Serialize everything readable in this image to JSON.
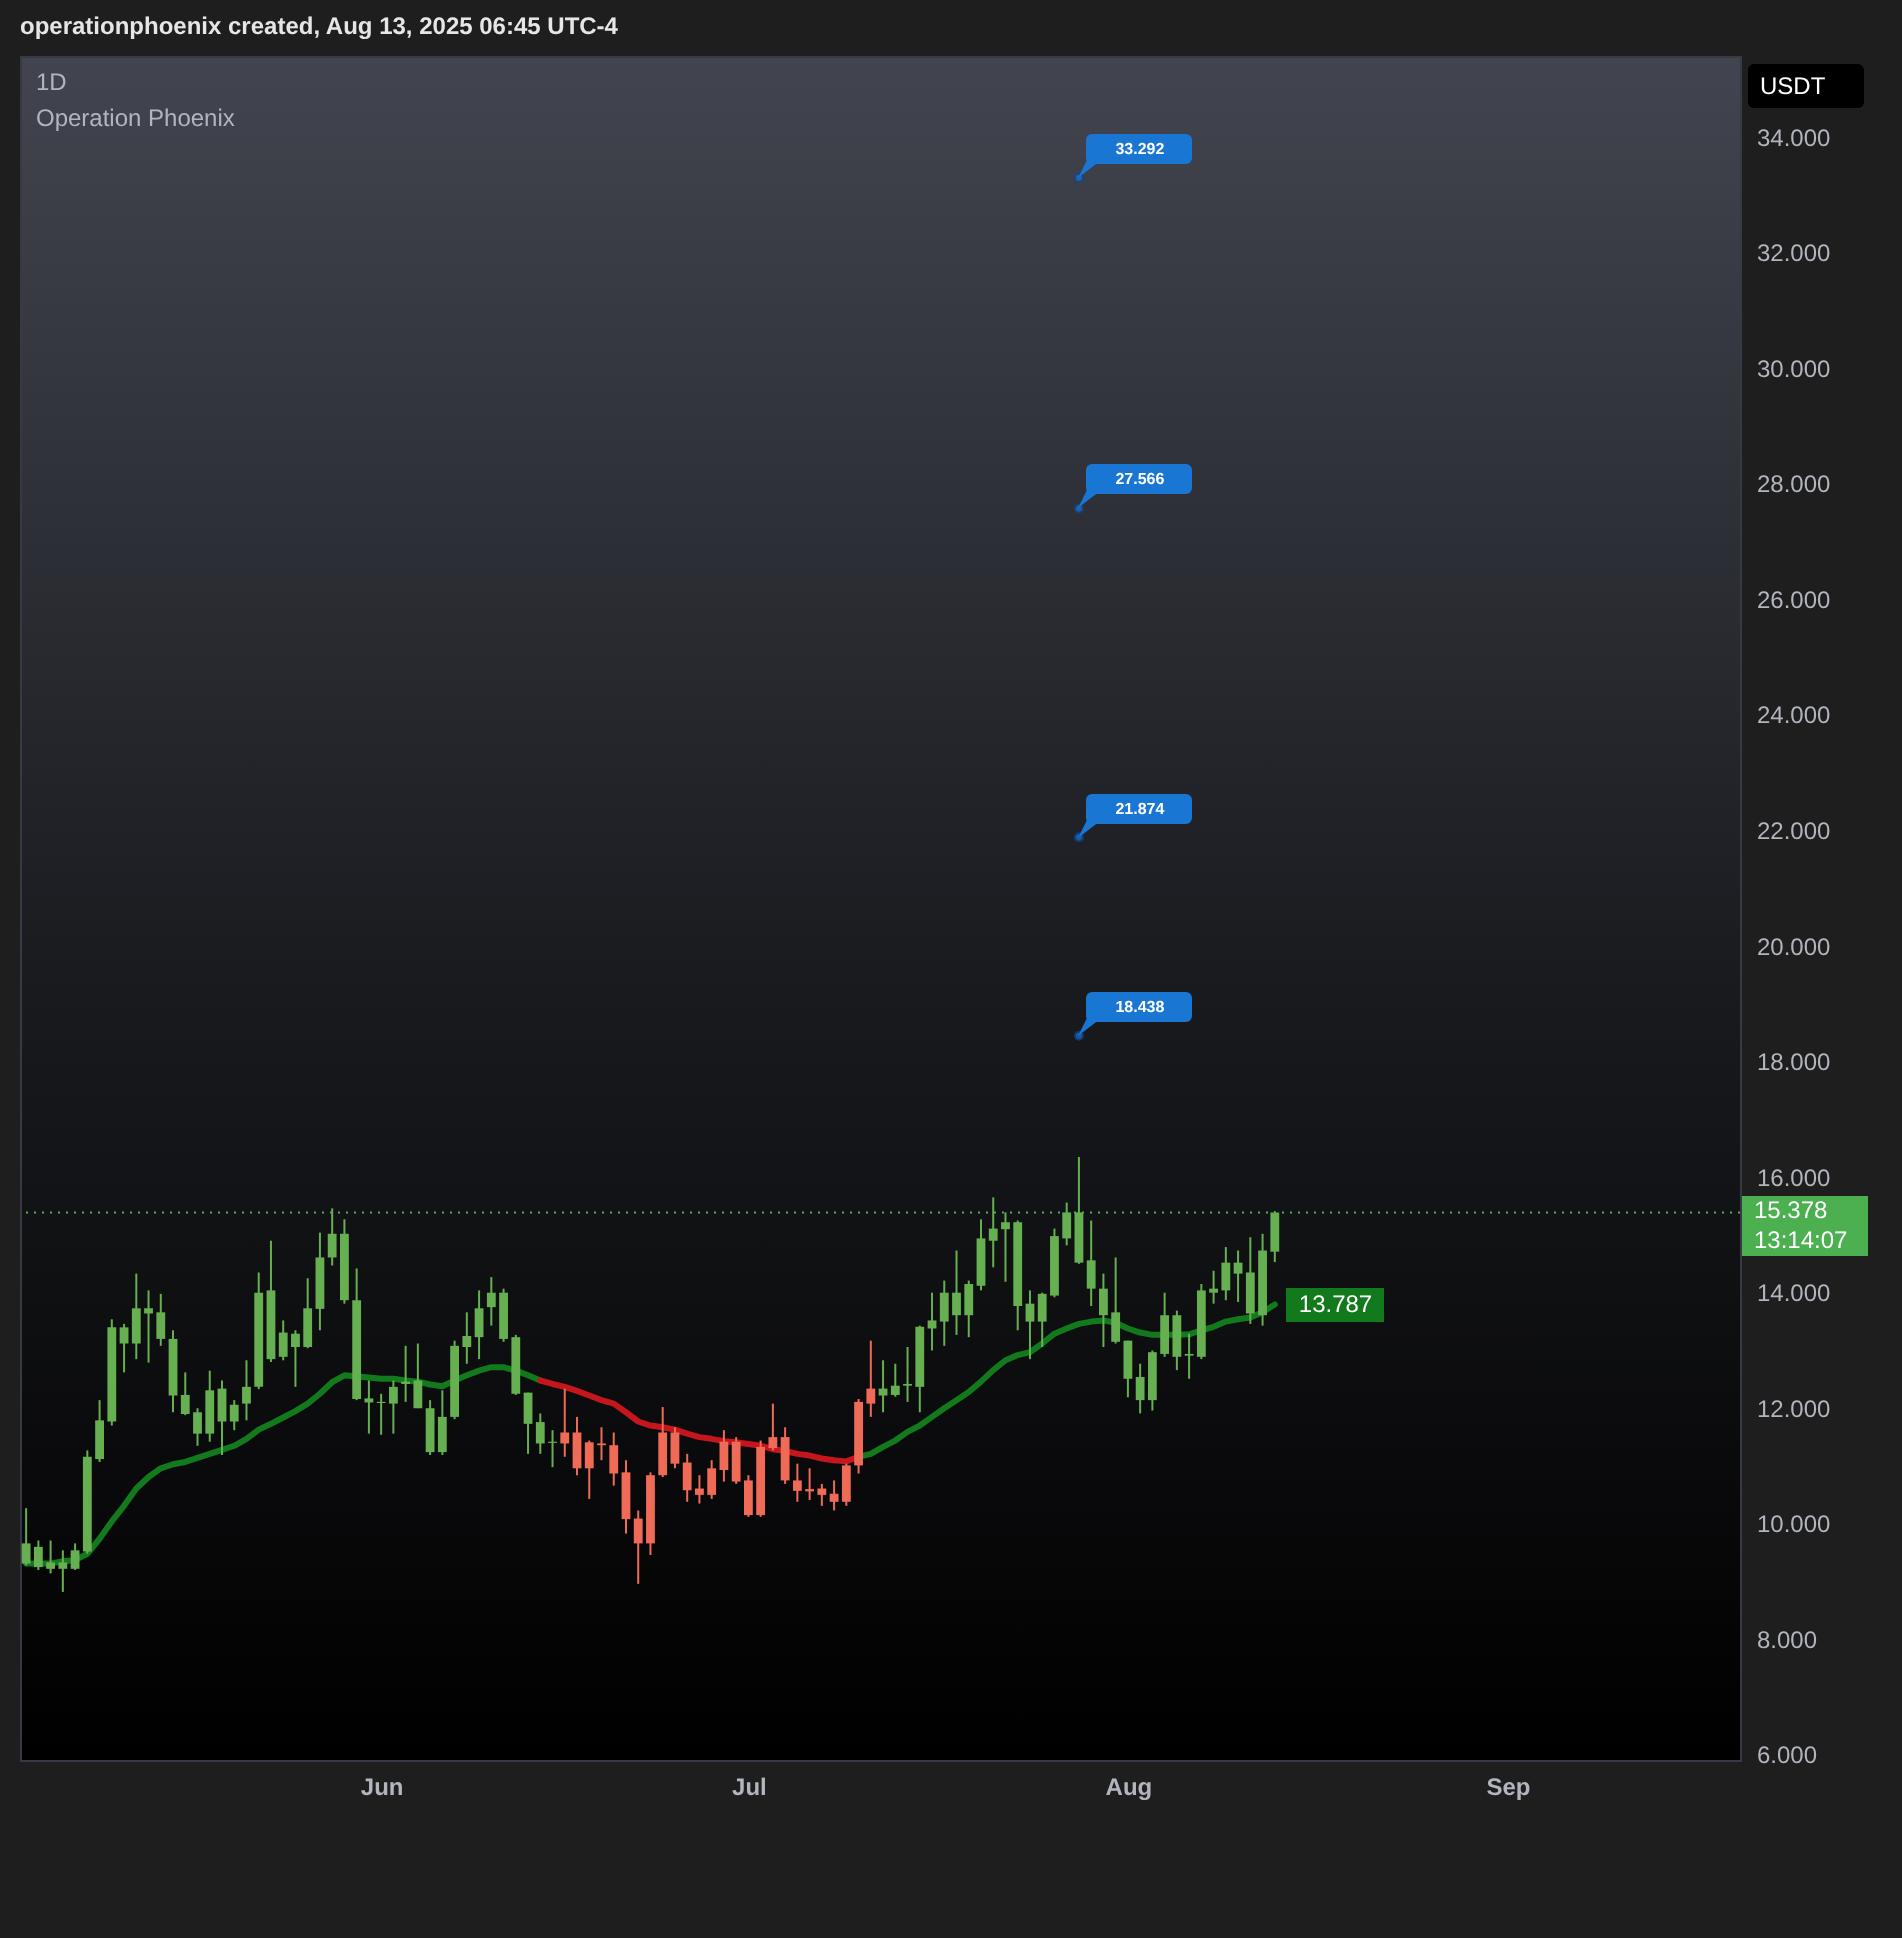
{
  "chart_data": {
    "type": "candlestick",
    "title": "1D",
    "subtitle": "Operation Phoenix",
    "ylabel": "USDT",
    "annotations": [
      "operationphoenix created, Aug 13, 2025 06:45 UTC-4",
      {
        "text": "33.292",
        "x": "2025-07-28",
        "y": 33.292
      },
      {
        "text": "27.566",
        "x": "2025-07-28",
        "y": 27.566
      },
      {
        "text": "21.874",
        "x": "2025-07-28",
        "y": 21.874
      },
      {
        "text": "18.438",
        "x": "2025-07-28",
        "y": 18.438
      },
      {
        "text": "13.787",
        "x": "2025-08-13",
        "y": 13.787
      },
      "13:14:07"
    ],
    "x": [
      "2025-05-03",
      "2025-05-04",
      "2025-05-05",
      "2025-05-06",
      "2025-05-07",
      "2025-05-08",
      "2025-05-09",
      "2025-05-10",
      "2025-05-11",
      "2025-05-12",
      "2025-05-13",
      "2025-05-14",
      "2025-05-15",
      "2025-05-16",
      "2025-05-17",
      "2025-05-18",
      "2025-05-19",
      "2025-05-20",
      "2025-05-21",
      "2025-05-22",
      "2025-05-23",
      "2025-05-24",
      "2025-05-25",
      "2025-05-26",
      "2025-05-27",
      "2025-05-28",
      "2025-05-29",
      "2025-05-30",
      "2025-05-31",
      "2025-06-01",
      "2025-06-02",
      "2025-06-03",
      "2025-06-04",
      "2025-06-05",
      "2025-06-06",
      "2025-06-07",
      "2025-06-08",
      "2025-06-09",
      "2025-06-10",
      "2025-06-11",
      "2025-06-12",
      "2025-06-13",
      "2025-06-14",
      "2025-06-15",
      "2025-06-16",
      "2025-06-17",
      "2025-06-18",
      "2025-06-19",
      "2025-06-20",
      "2025-06-21",
      "2025-06-22",
      "2025-06-23",
      "2025-06-24",
      "2025-06-25",
      "2025-06-26",
      "2025-06-27",
      "2025-06-28",
      "2025-06-29",
      "2025-06-30",
      "2025-07-01",
      "2025-07-02",
      "2025-07-03",
      "2025-07-04",
      "2025-07-05",
      "2025-07-06",
      "2025-07-07",
      "2025-07-08",
      "2025-07-09",
      "2025-07-10",
      "2025-07-11",
      "2025-07-12",
      "2025-07-13",
      "2025-07-14",
      "2025-07-15",
      "2025-07-16",
      "2025-07-17",
      "2025-07-18",
      "2025-07-19",
      "2025-07-20",
      "2025-07-21",
      "2025-07-22",
      "2025-07-23",
      "2025-07-24",
      "2025-07-25",
      "2025-07-26",
      "2025-07-27",
      "2025-07-28",
      "2025-07-29",
      "2025-07-30",
      "2025-07-31",
      "2025-08-01",
      "2025-08-02",
      "2025-08-03",
      "2025-08-04",
      "2025-08-05",
      "2025-08-06",
      "2025-08-07",
      "2025-08-08",
      "2025-08-09",
      "2025-08-10",
      "2025-08-11",
      "2025-08-12",
      "2025-08-13"
    ],
    "ohlc": [
      [
        9.3,
        10.26,
        9.27,
        9.65
      ],
      [
        9.24,
        9.7,
        9.19,
        9.59
      ],
      [
        9.21,
        9.7,
        9.13,
        9.32
      ],
      [
        9.21,
        9.53,
        8.81,
        9.32
      ],
      [
        9.21,
        9.65,
        9.19,
        9.53
      ],
      [
        9.51,
        11.26,
        9.47,
        11.15
      ],
      [
        11.11,
        12.13,
        11.06,
        11.78
      ],
      [
        11.76,
        13.53,
        11.69,
        13.39
      ],
      [
        13.11,
        13.45,
        12.61,
        13.39
      ],
      [
        13.11,
        14.32,
        12.84,
        13.72
      ],
      [
        13.63,
        14.03,
        12.78,
        13.72
      ],
      [
        13.19,
        13.97,
        13.07,
        13.65
      ],
      [
        12.21,
        13.34,
        11.92,
        13.19
      ],
      [
        11.89,
        12.61,
        11.87,
        12.22
      ],
      [
        11.55,
        11.99,
        11.34,
        11.92
      ],
      [
        11.55,
        12.64,
        11.41,
        12.3
      ],
      [
        11.76,
        12.47,
        11.18,
        12.33
      ],
      [
        11.76,
        12.13,
        11.61,
        12.05
      ],
      [
        12.07,
        12.82,
        11.78,
        12.36
      ],
      [
        12.36,
        14.34,
        12.32,
        13.99
      ],
      [
        12.84,
        14.89,
        12.79,
        14.03
      ],
      [
        12.88,
        13.51,
        12.82,
        13.3
      ],
      [
        13.05,
        13.34,
        12.36,
        13.28
      ],
      [
        13.05,
        14.24,
        13.03,
        13.72
      ],
      [
        13.71,
        15.03,
        13.34,
        14.6
      ],
      [
        14.6,
        15.45,
        14.46,
        15.01
      ],
      [
        13.86,
        15.26,
        13.8,
        15.01
      ],
      [
        12.15,
        14.41,
        12.13,
        13.86
      ],
      [
        12.09,
        12.47,
        11.55,
        12.16
      ],
      [
        12.08,
        12.24,
        11.53,
        12.1
      ],
      [
        12.07,
        12.47,
        11.55,
        12.36
      ],
      [
        12.41,
        13.07,
        12.1,
        12.45
      ],
      [
        11.99,
        13.11,
        11.99,
        12.47
      ],
      [
        11.23,
        12.13,
        11.18,
        11.99
      ],
      [
        11.23,
        12.3,
        11.18,
        11.84
      ],
      [
        11.84,
        13.16,
        11.8,
        13.07
      ],
      [
        13.05,
        13.65,
        12.76,
        13.24
      ],
      [
        13.22,
        14.03,
        12.84,
        13.72
      ],
      [
        13.74,
        14.26,
        13.42,
        13.99
      ],
      [
        13.19,
        14.06,
        13.14,
        13.99
      ],
      [
        12.24,
        13.26,
        12.22,
        13.22
      ],
      [
        11.72,
        12.26,
        11.2,
        12.26
      ],
      [
        11.38,
        11.9,
        11.2,
        11.75
      ],
      [
        11.39,
        11.61,
        10.97,
        11.41
      ],
      [
        11.57,
        12.33,
        11.15,
        11.38
      ],
      [
        11.57,
        11.84,
        10.83,
        10.95
      ],
      [
        11.4,
        11.43,
        10.42,
        10.95
      ],
      [
        11.38,
        11.66,
        11.09,
        11.35
      ],
      [
        11.35,
        11.57,
        10.65,
        10.86
      ],
      [
        10.88,
        11.09,
        9.82,
        10.07
      ],
      [
        10.08,
        10.22,
        8.95,
        9.65
      ],
      [
        10.83,
        10.88,
        9.45,
        9.65
      ],
      [
        11.57,
        12.01,
        10.8,
        10.83
      ],
      [
        11.57,
        11.66,
        10.95,
        11.03
      ],
      [
        11.05,
        11.2,
        10.37,
        10.57
      ],
      [
        10.6,
        10.83,
        10.34,
        10.49
      ],
      [
        10.95,
        11.09,
        10.42,
        10.49
      ],
      [
        11.41,
        11.61,
        10.72,
        10.92
      ],
      [
        11.41,
        11.49,
        10.68,
        10.72
      ],
      [
        10.74,
        10.83,
        10.11,
        10.14
      ],
      [
        11.32,
        11.43,
        10.11,
        10.14
      ],
      [
        11.49,
        12.07,
        11.26,
        11.3
      ],
      [
        11.49,
        11.66,
        10.68,
        10.74
      ],
      [
        10.74,
        11.03,
        10.37,
        10.56
      ],
      [
        10.59,
        10.95,
        10.4,
        10.55
      ],
      [
        10.6,
        10.68,
        10.3,
        10.49
      ],
      [
        10.51,
        10.74,
        10.22,
        10.37
      ],
      [
        11.0,
        11.03,
        10.3,
        10.37
      ],
      [
        12.1,
        12.15,
        10.86,
        11.0
      ],
      [
        12.33,
        13.16,
        11.84,
        12.07
      ],
      [
        12.21,
        12.82,
        11.92,
        12.33
      ],
      [
        12.22,
        12.76,
        12.19,
        12.38
      ],
      [
        12.38,
        13.05,
        12.1,
        12.41
      ],
      [
        12.36,
        13.42,
        11.92,
        13.4
      ],
      [
        13.37,
        13.99,
        12.99,
        13.51
      ],
      [
        13.49,
        14.2,
        13.07,
        13.99
      ],
      [
        13.6,
        14.72,
        13.26,
        13.99
      ],
      [
        13.6,
        14.2,
        13.22,
        14.14
      ],
      [
        14.11,
        15.26,
        14.03,
        14.93
      ],
      [
        14.89,
        15.64,
        14.43,
        15.1
      ],
      [
        15.09,
        15.38,
        14.18,
        15.21
      ],
      [
        13.76,
        15.24,
        13.34,
        15.21
      ],
      [
        13.49,
        14.03,
        12.84,
        13.8
      ],
      [
        13.49,
        13.99,
        13.05,
        13.97
      ],
      [
        13.94,
        15.1,
        13.91,
        14.97
      ],
      [
        14.93,
        15.55,
        14.81,
        15.38
      ],
      [
        14.51,
        16.34,
        14.49,
        15.38
      ],
      [
        14.06,
        15.24,
        13.76,
        14.55
      ],
      [
        13.6,
        14.32,
        13.05,
        14.06
      ],
      [
        13.14,
        14.6,
        13.11,
        13.65
      ],
      [
        12.5,
        13.16,
        12.18,
        13.16
      ],
      [
        12.13,
        12.76,
        11.9,
        12.53
      ],
      [
        12.13,
        12.99,
        11.95,
        12.96
      ],
      [
        12.93,
        13.99,
        12.88,
        13.6
      ],
      [
        12.88,
        13.68,
        12.65,
        13.6
      ],
      [
        12.9,
        13.28,
        12.5,
        12.93
      ],
      [
        12.88,
        14.14,
        12.84,
        14.03
      ],
      [
        13.99,
        14.37,
        13.8,
        14.06
      ],
      [
        14.03,
        14.78,
        13.86,
        14.51
      ],
      [
        14.32,
        14.72,
        13.83,
        14.51
      ],
      [
        13.63,
        14.95,
        13.45,
        14.34
      ],
      [
        13.6,
        15.01,
        13.42,
        14.72
      ],
      [
        14.7,
        15.4,
        14.52,
        15.378
      ]
    ],
    "colors": [
      "#66b052",
      "#66b052",
      "#66b052",
      "#66b052",
      "#66b052",
      "#66b052",
      "#66b052",
      "#66b052",
      "#66b052",
      "#66b052",
      "#66b052",
      "#66b052",
      "#66b052",
      "#66b052",
      "#66b052",
      "#66b052",
      "#66b052",
      "#66b052",
      "#66b052",
      "#66b052",
      "#66b052",
      "#66b052",
      "#66b052",
      "#66b052",
      "#66b052",
      "#66b052",
      "#66b052",
      "#66b052",
      "#66b052",
      "#66b052",
      "#66b052",
      "#66b052",
      "#66b052",
      "#66b052",
      "#66b052",
      "#66b052",
      "#66b052",
      "#66b052",
      "#66b052",
      "#66b052",
      "#66b052",
      "#66b052",
      "#66b052",
      "#66b052",
      "#ef6b57",
      "#ef6b57",
      "#ef6b57",
      "#ef6b57",
      "#ef6b57",
      "#ef6b57",
      "#ef6b57",
      "#ef6b57",
      "#ef6b57",
      "#ef6b57",
      "#ef6b57",
      "#ef6b57",
      "#ef6b57",
      "#ef6b57",
      "#ef6b57",
      "#ef6b57",
      "#ef6b57",
      "#ef6b57",
      "#ef6b57",
      "#ef6b57",
      "#ef6b57",
      "#ef6b57",
      "#ef6b57",
      "#ef6b57",
      "#ef6b57",
      "#ef6b57",
      "#66b052",
      "#66b052",
      "#66b052",
      "#66b052",
      "#66b052",
      "#66b052",
      "#66b052",
      "#66b052",
      "#66b052",
      "#66b052",
      "#66b052",
      "#66b052",
      "#66b052",
      "#66b052",
      "#66b052",
      "#66b052",
      "#66b052",
      "#66b052",
      "#66b052",
      "#66b052",
      "#66b052",
      "#66b052",
      "#66b052",
      "#66b052",
      "#66b052",
      "#66b052",
      "#66b052",
      "#66b052",
      "#66b052",
      "#66b052",
      "#66b052",
      "#66b052",
      "#66b052"
    ],
    "series": [
      {
        "type": "line",
        "color": "#127a1c",
        "x": [
          "2025-05-03",
          "2025-05-04",
          "2025-05-05",
          "2025-05-06",
          "2025-05-07",
          "2025-05-08",
          "2025-05-09",
          "2025-05-10",
          "2025-05-11",
          "2025-05-12",
          "2025-05-13",
          "2025-05-14",
          "2025-05-15",
          "2025-05-16",
          "2025-05-17",
          "2025-05-18",
          "2025-05-19",
          "2025-05-20",
          "2025-05-21",
          "2025-05-22",
          "2025-05-23",
          "2025-05-24",
          "2025-05-25",
          "2025-05-26",
          "2025-05-27",
          "2025-05-28",
          "2025-05-29",
          "2025-05-30",
          "2025-05-31",
          "2025-06-01",
          "2025-06-02",
          "2025-06-03",
          "2025-06-04",
          "2025-06-05",
          "2025-06-06",
          "2025-06-07",
          "2025-06-08",
          "2025-06-09",
          "2025-06-10",
          "2025-06-11",
          "2025-06-12",
          "2025-06-13",
          "2025-06-14"
        ],
        "values": [
          9.3,
          9.3,
          9.3,
          9.34,
          9.36,
          9.47,
          9.73,
          10.03,
          10.3,
          10.6,
          10.8,
          10.95,
          11.02,
          11.06,
          11.13,
          11.2,
          11.27,
          11.34,
          11.46,
          11.62,
          11.72,
          11.83,
          11.94,
          12.07,
          12.24,
          12.44,
          12.56,
          12.54,
          12.52,
          12.5,
          12.5,
          12.47,
          12.45,
          12.4,
          12.37,
          12.47,
          12.56,
          12.64,
          12.7,
          12.7,
          12.64,
          12.56,
          12.47
        ]
      },
      {
        "type": "line",
        "color": "#c4161c",
        "x": [
          "2025-06-14",
          "2025-06-15",
          "2025-06-16",
          "2025-06-17",
          "2025-06-18",
          "2025-06-19",
          "2025-06-20",
          "2025-06-21",
          "2025-06-22",
          "2025-06-23",
          "2025-06-24",
          "2025-06-25",
          "2025-06-26",
          "2025-06-27",
          "2025-06-28",
          "2025-06-29",
          "2025-06-30",
          "2025-07-01",
          "2025-07-02",
          "2025-07-03",
          "2025-07-04",
          "2025-07-05",
          "2025-07-06",
          "2025-07-07",
          "2025-07-08",
          "2025-07-09",
          "2025-07-10"
        ],
        "values": [
          12.47,
          12.41,
          12.36,
          12.29,
          12.21,
          12.13,
          12.07,
          11.92,
          11.76,
          11.69,
          11.66,
          11.62,
          11.55,
          11.49,
          11.46,
          11.42,
          11.4,
          11.37,
          11.34,
          11.28,
          11.25,
          11.2,
          11.17,
          11.12,
          11.09,
          11.07,
          11.15
        ]
      },
      {
        "type": "line",
        "color": "#127a1c",
        "x": [
          "2025-07-10",
          "2025-07-11",
          "2025-07-12",
          "2025-07-13",
          "2025-07-14",
          "2025-07-15",
          "2025-07-16",
          "2025-07-17",
          "2025-07-18",
          "2025-07-19",
          "2025-07-20",
          "2025-07-21",
          "2025-07-22",
          "2025-07-23",
          "2025-07-24",
          "2025-07-25",
          "2025-07-26",
          "2025-07-27",
          "2025-07-28",
          "2025-07-29",
          "2025-07-30",
          "2025-07-31",
          "2025-08-01",
          "2025-08-02",
          "2025-08-03",
          "2025-08-04",
          "2025-08-05",
          "2025-08-06",
          "2025-08-07",
          "2025-08-08",
          "2025-08-09",
          "2025-08-10",
          "2025-08-11",
          "2025-08-12",
          "2025-08-13"
        ],
        "values": [
          11.15,
          11.2,
          11.32,
          11.43,
          11.58,
          11.69,
          11.84,
          11.99,
          12.13,
          12.27,
          12.45,
          12.65,
          12.82,
          12.91,
          12.96,
          13.11,
          13.28,
          13.37,
          13.45,
          13.49,
          13.51,
          13.47,
          13.37,
          13.3,
          13.26,
          13.26,
          13.26,
          13.27,
          13.34,
          13.4,
          13.49,
          13.53,
          13.56,
          13.65,
          13.787
        ]
      }
    ],
    "ref_lines": [
      {
        "axis": "y",
        "value": 15.378,
        "label": "15.378",
        "color": "#4caf50",
        "line_style": "dotted"
      }
    ],
    "xlim": [
      "2025-05-02T12:00",
      "2025-09-20"
    ],
    "xticks": [
      {
        "value": "2025-06-01",
        "label": "Jun"
      },
      {
        "value": "2025-07-01",
        "label": "Jul"
      },
      {
        "value": "2025-08-01",
        "label": "Aug"
      },
      {
        "value": "2025-09-01",
        "label": "Sep"
      }
    ],
    "ylim": [
      5.9,
      35.4
    ],
    "yticks": [
      {
        "value": 6,
        "label": "6.000"
      },
      {
        "value": 8,
        "label": "8.000"
      },
      {
        "value": 10,
        "label": "10.000"
      },
      {
        "value": 12,
        "label": "12.000"
      },
      {
        "value": 14,
        "label": "14.000"
      },
      {
        "value": 16,
        "label": "16.000"
      },
      {
        "value": 18,
        "label": "18.000"
      },
      {
        "value": 20,
        "label": "20.000"
      },
      {
        "value": 22,
        "label": "22.000"
      },
      {
        "value": 24,
        "label": "24.000"
      },
      {
        "value": 26,
        "label": "26.000"
      },
      {
        "value": 28,
        "label": "28.000"
      },
      {
        "value": 30,
        "label": "30.000"
      },
      {
        "value": 32,
        "label": "32.000"
      },
      {
        "value": 34,
        "label": "34.000"
      }
    ]
  }
}
